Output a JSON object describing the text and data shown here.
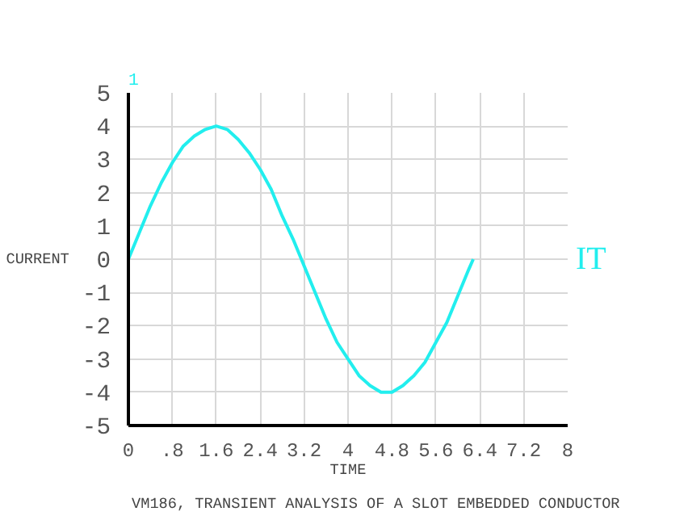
{
  "chart_data": {
    "type": "line",
    "title": "VM186, TRANSIENT ANALYSIS OF A SLOT EMBEDDED CONDUCTOR",
    "xlabel": "TIME",
    "ylabel": "CURRENT",
    "annotations": [
      "1"
    ],
    "x": [
      0,
      0.2,
      0.4,
      0.6,
      0.8,
      1.0,
      1.2,
      1.4,
      1.6,
      1.8,
      2.0,
      2.2,
      2.4,
      2.6,
      2.8,
      3.0,
      3.2,
      3.4,
      3.6,
      3.8,
      4.0,
      4.2,
      4.4,
      4.6,
      4.8,
      5.0,
      5.2,
      5.4,
      5.6,
      5.8,
      6.0,
      6.2,
      6.28
    ],
    "series": [
      {
        "name": "IT",
        "color": "#22eeee",
        "values": [
          0,
          0.8,
          1.6,
          2.3,
          2.9,
          3.4,
          3.7,
          3.9,
          4.0,
          3.9,
          3.6,
          3.2,
          2.7,
          2.1,
          1.3,
          0.6,
          -0.2,
          -1.0,
          -1.8,
          -2.5,
          -3.0,
          -3.5,
          -3.8,
          -4.0,
          -4.0,
          -3.8,
          -3.5,
          -3.1,
          -2.5,
          -1.9,
          -1.1,
          -0.3,
          0
        ]
      }
    ],
    "xlim": [
      0,
      8
    ],
    "ylim": [
      -5,
      5
    ],
    "xticks": [
      0,
      {
        "value": 0.8,
        "label": ".8"
      },
      1.6,
      2.4,
      3.2,
      4,
      4.8,
      5.6,
      6.4,
      7.2,
      8
    ],
    "yticks": [
      -5,
      -4,
      -3,
      -2,
      -1,
      0,
      1,
      2,
      3,
      4,
      5
    ],
    "grid": true,
    "marker": "none",
    "line_style": "solid"
  }
}
